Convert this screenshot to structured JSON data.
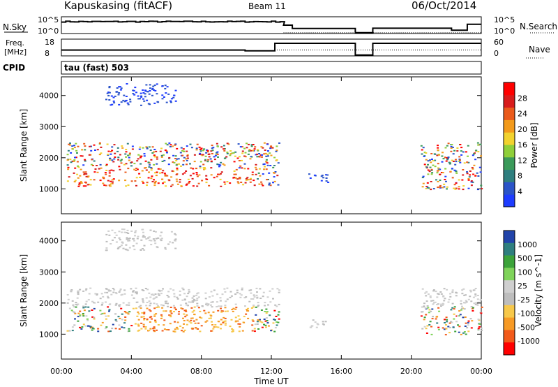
{
  "header": {
    "station": "Kapuskasing (fitACF)",
    "beam": "Beam 11",
    "date": "06/Oct/2014"
  },
  "side_labels": {
    "nsky": "N.Sky",
    "freq_line1": "Freq.",
    "freq_line2": "[MHz]",
    "cpid": "CPID",
    "nsearch": "N.Search",
    "nave": "Nave"
  },
  "top_axes": {
    "nsky_ticks": [
      "10^5",
      "10^0"
    ],
    "nsearch_ticks": [
      "10^5",
      "10^0"
    ],
    "freq_ticks": [
      "18",
      "8"
    ],
    "nave_ticks": [
      "60",
      "0"
    ]
  },
  "cpid_text": "tau (fast) 503",
  "colors": {
    "power_scale": [
      "#1e3cff",
      "#2b54c8",
      "#2f7f7f",
      "#3b9a5a",
      "#8fcf3a",
      "#f2d22e",
      "#f39a1b",
      "#ea5a1b",
      "#d81c1c",
      "#ff0000"
    ],
    "velocity_scale": [
      "#ff0000",
      "#f25a1a",
      "#f79a25",
      "#f7c84a",
      "#bdbdbd",
      "#cfcfcf",
      "#7fd35a",
      "#3ca33a",
      "#2f7f7f",
      "#2244aa"
    ]
  },
  "chart_data": [
    {
      "type": "heatmap",
      "panel": "power",
      "xlabel": "Time UT",
      "ylabel": "Slant Range [km]",
      "x_ticks": [
        "00:00",
        "04:00",
        "08:00",
        "12:00",
        "16:00",
        "20:00",
        "00:00"
      ],
      "y_ticks": [
        1000,
        2000,
        3000,
        4000
      ],
      "ylim": [
        200,
        4600
      ],
      "colorbar_label": "Power [dB]",
      "colorbar_ticks": [
        "4",
        "8",
        "12",
        "16",
        "20",
        "24",
        "28"
      ],
      "scatter_regions": [
        {
          "t_start": 0.3,
          "t_end": 12.4,
          "r_start": 1100,
          "r_end": 2500,
          "level": "mixed"
        },
        {
          "t_start": 2.5,
          "t_end": 6.5,
          "r_start": 3700,
          "r_end": 4400,
          "level": "low"
        },
        {
          "t_start": 14.0,
          "t_end": 15.2,
          "r_start": 1200,
          "r_end": 1500,
          "level": "low"
        },
        {
          "t_start": 20.5,
          "t_end": 24.0,
          "r_start": 1000,
          "r_end": 2500,
          "level": "mixed"
        }
      ]
    },
    {
      "type": "heatmap",
      "panel": "velocity",
      "xlabel": "Time UT",
      "ylabel": "Slant Range [km]",
      "x_ticks": [
        "00:00",
        "04:00",
        "08:00",
        "12:00",
        "16:00",
        "20:00",
        "00:00"
      ],
      "y_ticks": [
        1000,
        2000,
        3000,
        4000
      ],
      "ylim": [
        200,
        4600
      ],
      "colorbar_label": "Velocity [m s^-1]",
      "colorbar_ticks": [
        "1000",
        "500",
        "100",
        "25",
        "-25",
        "-100",
        "-500",
        "-1000"
      ],
      "scatter_regions": [
        {
          "t_start": 0.3,
          "t_end": 12.4,
          "r_start": 1100,
          "r_end": 2500,
          "level": "mixed"
        },
        {
          "t_start": 2.5,
          "t_end": 6.5,
          "r_start": 3700,
          "r_end": 4400,
          "level": "low"
        },
        {
          "t_start": 14.0,
          "t_end": 15.2,
          "r_start": 1200,
          "r_end": 1500,
          "level": "low"
        },
        {
          "t_start": 20.5,
          "t_end": 24.0,
          "r_start": 1000,
          "r_end": 2500,
          "level": "mixed"
        }
      ]
    }
  ]
}
